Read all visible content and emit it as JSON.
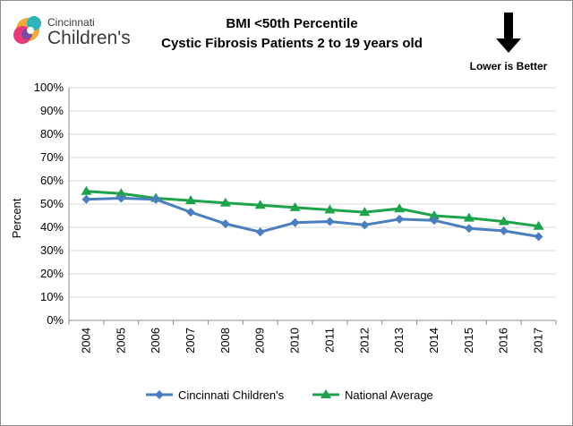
{
  "logo": {
    "line1": "Cincinnati",
    "line2": "Children's"
  },
  "chart_data": {
    "type": "line",
    "title_line1": "BMI <50th Percentile",
    "title_line2": "Cystic Fibrosis Patients 2 to 19 years old",
    "note": "Lower is Better",
    "xlabel": "",
    "ylabel": "Percent",
    "x": [
      "2004",
      "2005",
      "2006",
      "2007",
      "2008",
      "2009",
      "2010",
      "2011",
      "2012",
      "2013",
      "2014",
      "2015",
      "2016",
      "2017"
    ],
    "ylim": [
      0,
      100
    ],
    "yticks": [
      0,
      10,
      20,
      30,
      40,
      50,
      60,
      70,
      80,
      90,
      100
    ],
    "ytick_labels": [
      "0%",
      "10%",
      "20%",
      "30%",
      "40%",
      "50%",
      "60%",
      "70%",
      "80%",
      "90%",
      "100%"
    ],
    "grid": true,
    "legend_position": "bottom",
    "series": [
      {
        "name": "Cincinnati Children's",
        "marker": "diamond",
        "color": "#4a7ebf",
        "values": [
          52,
          52.5,
          52,
          46.5,
          41.5,
          38,
          42,
          42.5,
          41,
          43.5,
          43,
          39.5,
          38.5,
          36
        ]
      },
      {
        "name": "National Average",
        "marker": "triangle",
        "color": "#1fa34a",
        "values": [
          55.5,
          54.5,
          52.5,
          51.5,
          50.5,
          49.5,
          48.5,
          47.5,
          46.5,
          48,
          45,
          44,
          42.5,
          40.5
        ]
      }
    ]
  }
}
